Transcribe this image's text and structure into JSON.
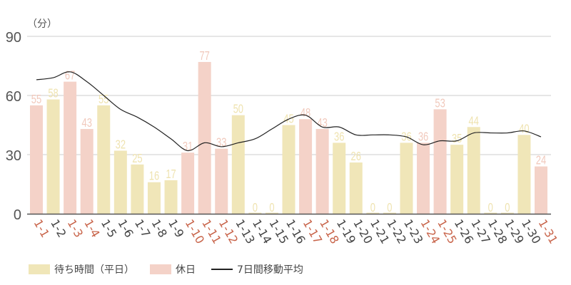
{
  "chart_data": {
    "type": "bar",
    "title": "",
    "unit_label": "（分）",
    "xlabel": "",
    "ylabel": "（分）",
    "ylim": [
      0,
      90
    ],
    "yticks": [
      0,
      30,
      60,
      90
    ],
    "grid": true,
    "legend_position": "bottom-left",
    "categories": [
      "1-1",
      "1-2",
      "1-3",
      "1-4",
      "1-5",
      "1-6",
      "1-7",
      "1-8",
      "1-9",
      "1-10",
      "1-11",
      "1-12",
      "1-13",
      "1-14",
      "1-15",
      "1-16",
      "1-17",
      "1-18",
      "1-19",
      "1-20",
      "1-21",
      "1-22",
      "1-23",
      "1-24",
      "1-25",
      "1-26",
      "1-27",
      "1-28",
      "1-29",
      "1-30",
      "1-31"
    ],
    "values": [
      55,
      58,
      67,
      43,
      55,
      32,
      25,
      16,
      17,
      31,
      77,
      33,
      50,
      0,
      0,
      45,
      48,
      43,
      36,
      26,
      0,
      0,
      36,
      36,
      53,
      35,
      44,
      0,
      0,
      40,
      24
    ],
    "day_type": [
      "holiday",
      "weekday",
      "holiday",
      "holiday",
      "weekday",
      "weekday",
      "weekday",
      "weekday",
      "weekday",
      "holiday",
      "holiday",
      "holiday",
      "weekday",
      "weekday",
      "weekday",
      "weekday",
      "holiday",
      "holiday",
      "weekday",
      "weekday",
      "weekday",
      "weekday",
      "weekday",
      "holiday",
      "holiday",
      "weekday",
      "weekday",
      "weekday",
      "weekday",
      "weekday",
      "holiday"
    ],
    "series": [
      {
        "name": "待ち時間（平日）",
        "type": "bar",
        "color": "#f0e6b8"
      },
      {
        "name": "休日",
        "type": "bar",
        "color": "#f4d2c8"
      },
      {
        "name": "7日間移動平均",
        "type": "line",
        "color": "#222222",
        "values": [
          68,
          69,
          72,
          67,
          60,
          53,
          49,
          44,
          38,
          32,
          36,
          34,
          36,
          38,
          43,
          48,
          50,
          44,
          44,
          40,
          40,
          40,
          39,
          35,
          37,
          37,
          41,
          41,
          41,
          42,
          39
        ]
      }
    ],
    "colors": {
      "weekday": "#f0e6b8",
      "holiday": "#f4d2c8",
      "weekday_label": "#efe3b0",
      "holiday_label": "#f1c9bc",
      "holiday_tick": "#c8644a",
      "weekday_tick": "#444444",
      "grid": "#cccccc",
      "axis": "#555555",
      "line": "#222222"
    }
  },
  "legend": {
    "weekday": "待ち時間（平日）",
    "holiday": "休日",
    "moving_avg": "7日間移動平均"
  }
}
